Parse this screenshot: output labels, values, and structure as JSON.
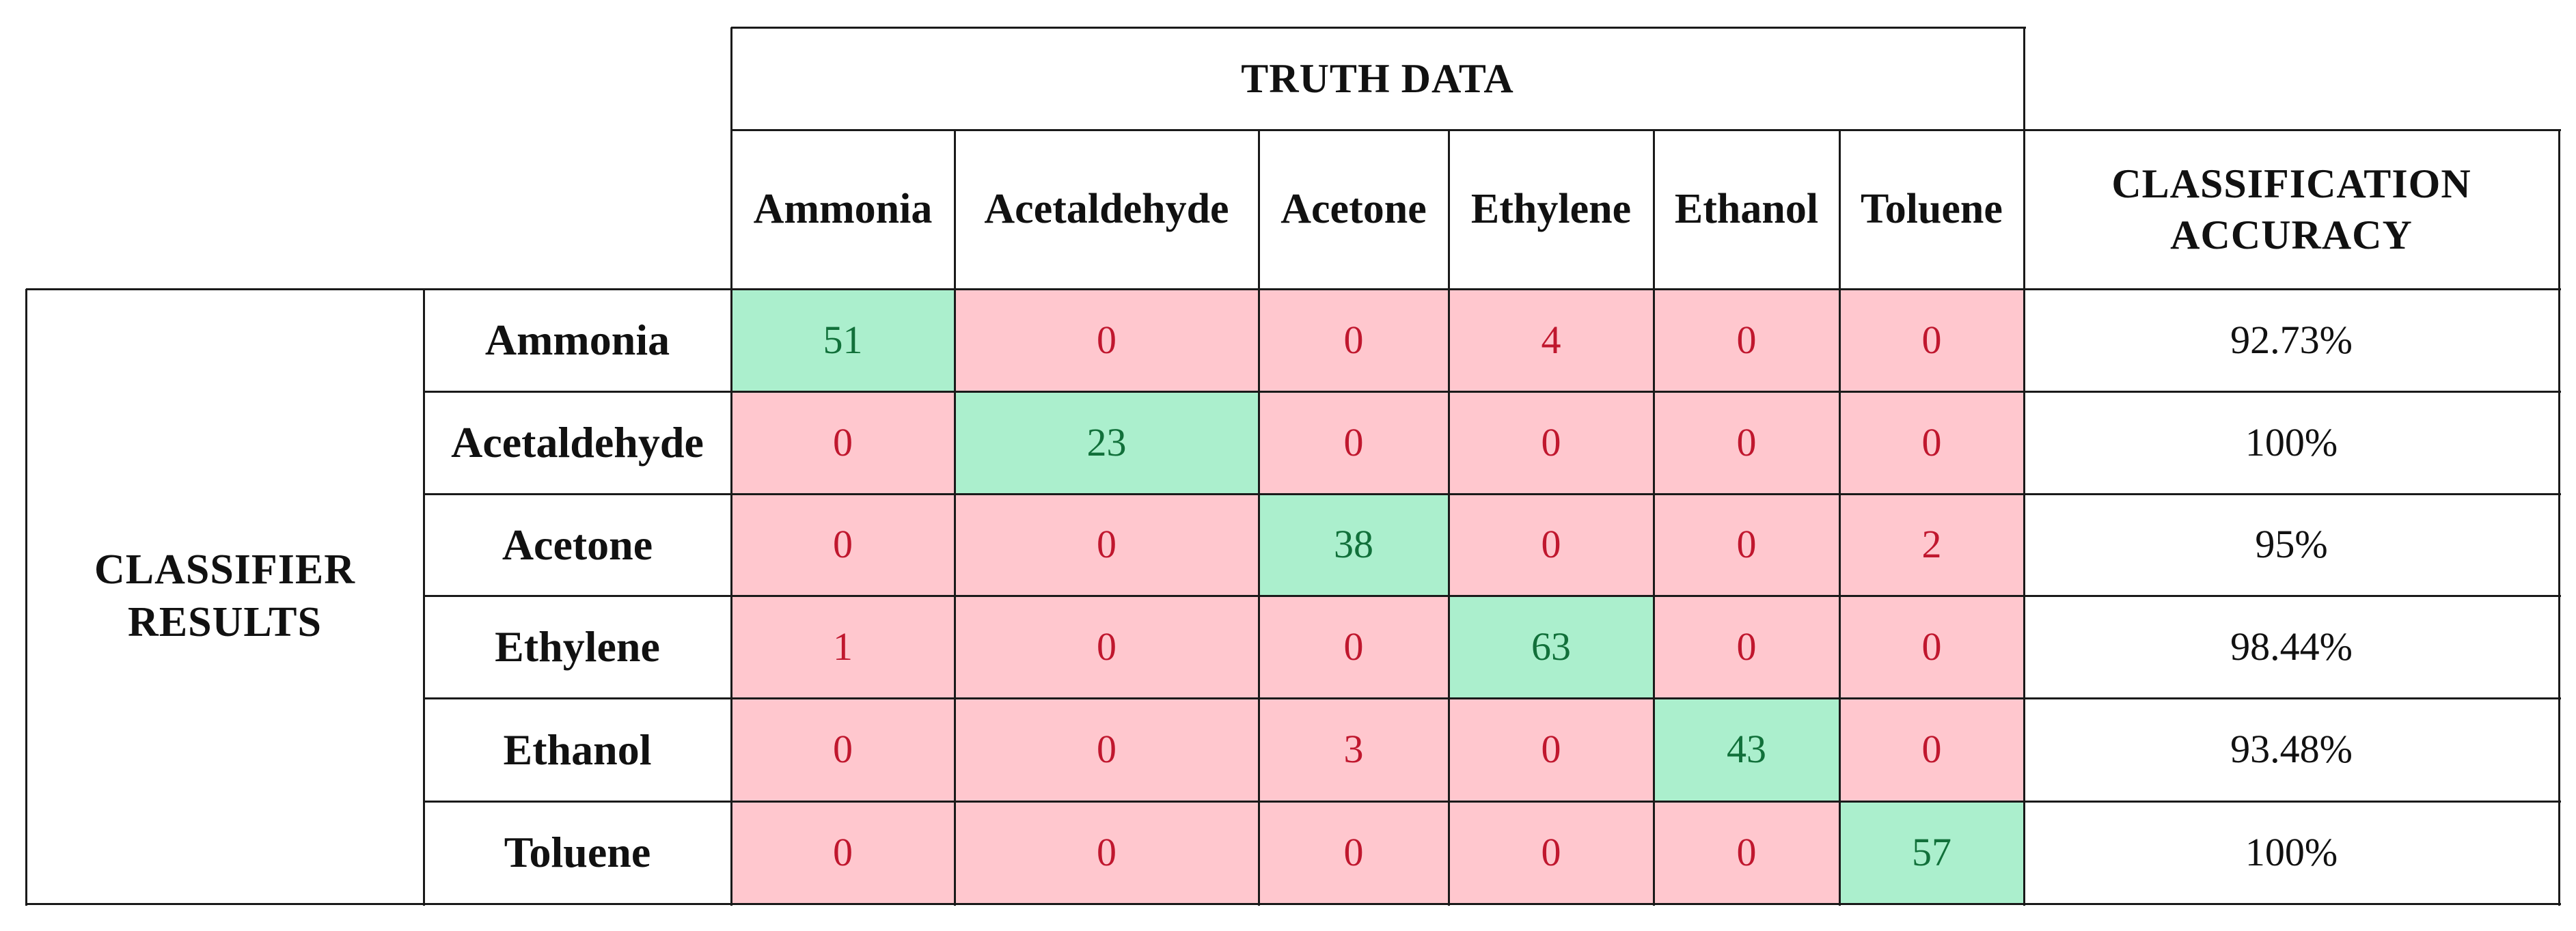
{
  "chart_data": {
    "type": "table",
    "title": "TRUTH DATA",
    "row_group_label": "CLASSIFIER RESULTS",
    "accuracy_header": "CLASSIFICATION ACCURACY",
    "columns": [
      "Ammonia",
      "Acetaldehyde",
      "Acetone",
      "Ethylene",
      "Ethanol",
      "Toluene"
    ],
    "rows": [
      "Ammonia",
      "Acetaldehyde",
      "Acetone",
      "Ethylene",
      "Ethanol",
      "Toluene"
    ],
    "values": [
      [
        51,
        0,
        0,
        4,
        0,
        0
      ],
      [
        0,
        23,
        0,
        0,
        0,
        0
      ],
      [
        0,
        0,
        38,
        0,
        0,
        2
      ],
      [
        1,
        0,
        0,
        63,
        0,
        0
      ],
      [
        0,
        0,
        3,
        0,
        43,
        0
      ],
      [
        0,
        0,
        0,
        0,
        0,
        57
      ]
    ],
    "accuracy": [
      "92.73%",
      "100%",
      "95%",
      "98.44%",
      "93.48%",
      "100%"
    ]
  },
  "colors": {
    "correct_fill": "#abefcd",
    "correct_text": "#11703a",
    "error_fill": "#ffc7ce",
    "error_text": "#c0172e",
    "border": "#1a1a1a"
  }
}
